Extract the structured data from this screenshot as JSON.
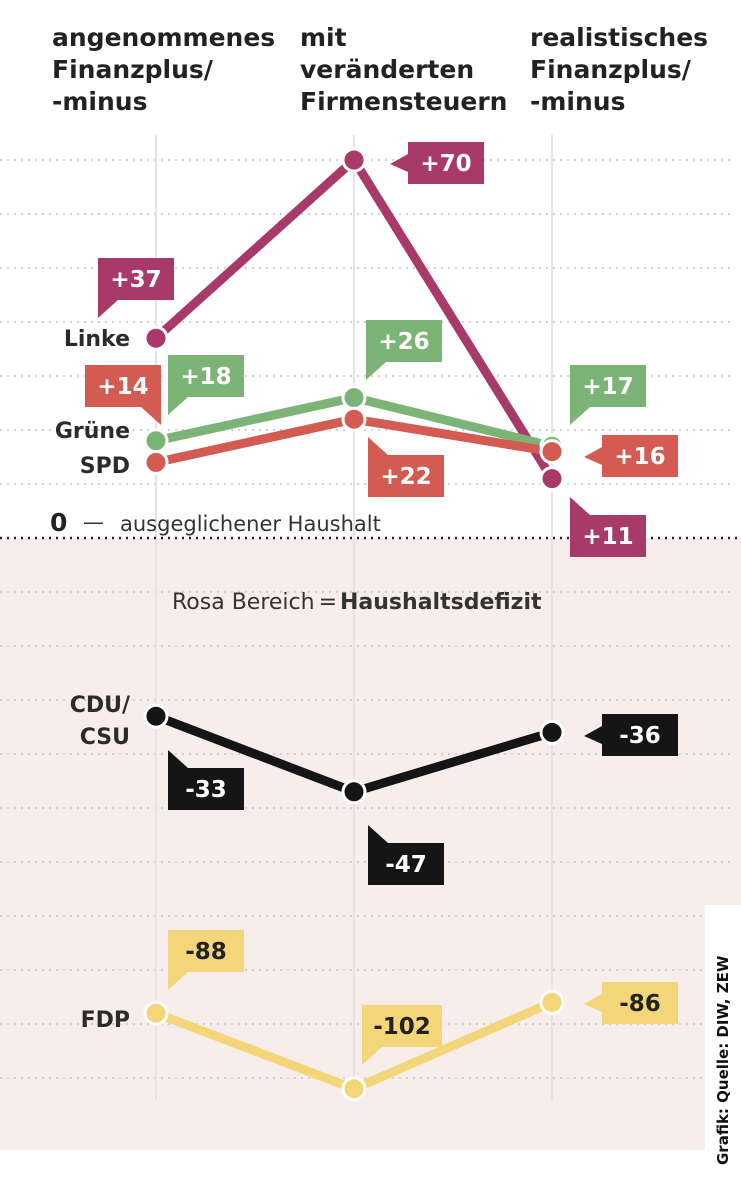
{
  "chart_data": {
    "type": "line",
    "categories": [
      "angenommenes Finanzplus/ -minus",
      "mit veränderten Firmensteuern",
      "realistisches Finanzplus/ -minus"
    ],
    "category_lines": [
      [
        "angenommenes",
        "Finanzplus/",
        "-minus"
      ],
      [
        "mit",
        "veränderten",
        "Firmensteuern"
      ],
      [
        "realistisches",
        "Finanzplus/",
        "-minus"
      ]
    ],
    "series": [
      {
        "name": "Linke",
        "label_lines": [
          "Linke"
        ],
        "color": "#a83a6b",
        "values": [
          37,
          70,
          11
        ],
        "labels": [
          "+37",
          "+70",
          "+11"
        ]
      },
      {
        "name": "Grüne",
        "label_lines": [
          "Grüne"
        ],
        "color": "#7bb476",
        "values": [
          18,
          26,
          17
        ],
        "labels": [
          "+18",
          "+26",
          "+17"
        ]
      },
      {
        "name": "SPD",
        "label_lines": [
          "SPD"
        ],
        "color": "#d45b52",
        "values": [
          14,
          22,
          16
        ],
        "labels": [
          "+14",
          "+22",
          "+16"
        ]
      },
      {
        "name": "CDU/CSU",
        "label_lines": [
          "CDU/",
          "CSU"
        ],
        "color": "#151515",
        "values": [
          -33,
          -47,
          -36
        ],
        "labels": [
          "-33",
          "-47",
          "-36"
        ]
      },
      {
        "name": "FDP",
        "label_lines": [
          "FDP"
        ],
        "color": "#f3d679",
        "values": [
          -88,
          -102,
          -86
        ],
        "labels": [
          "-88",
          "-102",
          "-86"
        ]
      }
    ],
    "zero_label": {
      "number": "0",
      "dash": "—",
      "text": "ausgeglichener Haushalt"
    },
    "annotation": {
      "prefix": "Rosa Bereich",
      "equals": "=",
      "bold": "Haushaltsdefizit"
    },
    "deficit_fill": "#f7eeec",
    "ylim": [
      -107,
      83
    ],
    "grid": true,
    "source": "Grafik: Quelle: DIW, ZEW"
  }
}
